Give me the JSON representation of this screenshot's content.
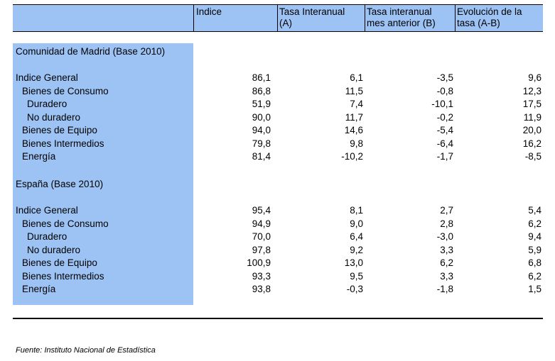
{
  "headers": {
    "indice": "Indice",
    "tasa_interanual": "Tasa Interanual\n(A)",
    "tasa_mes_anterior": "Tasa interanual\nmes anterior (B)",
    "evolucion": "Evolución de la\ntasa (A-B)"
  },
  "sections": [
    {
      "title": "Comunidad de Madrid (Base 2010)",
      "rows": [
        {
          "label": "Indice General",
          "indent": 0,
          "indice": "86,1",
          "tasa_a": "6,1",
          "tasa_b": "-3,5",
          "evol": "9,6"
        },
        {
          "label": "Bienes de Consumo",
          "indent": 1,
          "indice": "86,8",
          "tasa_a": "11,5",
          "tasa_b": "-0,8",
          "evol": "12,3"
        },
        {
          "label": "Duradero",
          "indent": 2,
          "indice": "51,9",
          "tasa_a": "7,4",
          "tasa_b": "-10,1",
          "evol": "17,5"
        },
        {
          "label": "No duradero",
          "indent": 2,
          "indice": "90,0",
          "tasa_a": "11,7",
          "tasa_b": "-0,2",
          "evol": "11,9"
        },
        {
          "label": "Bienes de Equipo",
          "indent": 1,
          "indice": "94,0",
          "tasa_a": "14,6",
          "tasa_b": "-5,4",
          "evol": "20,0"
        },
        {
          "label": "Bienes Intermedios",
          "indent": 1,
          "indice": "79,8",
          "tasa_a": "9,8",
          "tasa_b": "-6,4",
          "evol": "16,2"
        },
        {
          "label": "Energía",
          "indent": 1,
          "indice": "81,4",
          "tasa_a": "-10,2",
          "tasa_b": "-1,7",
          "evol": "-8,5"
        }
      ]
    },
    {
      "title": "España (Base 2010)",
      "rows": [
        {
          "label": "Indice General",
          "indent": 0,
          "indice": "95,4",
          "tasa_a": "8,1",
          "tasa_b": "2,7",
          "evol": "5,4"
        },
        {
          "label": "Bienes de Consumo",
          "indent": 1,
          "indice": "94,9",
          "tasa_a": "9,0",
          "tasa_b": "2,8",
          "evol": "6,2"
        },
        {
          "label": "Duradero",
          "indent": 2,
          "indice": "70,0",
          "tasa_a": "6,4",
          "tasa_b": "-3,0",
          "evol": "9,4"
        },
        {
          "label": "No duradero",
          "indent": 2,
          "indice": "97,8",
          "tasa_a": "9,2",
          "tasa_b": "3,3",
          "evol": "5,9"
        },
        {
          "label": "Bienes de Equipo",
          "indent": 1,
          "indice": "100,9",
          "tasa_a": "13,0",
          "tasa_b": "6,2",
          "evol": "6,8"
        },
        {
          "label": "Bienes Intermedios",
          "indent": 1,
          "indice": "93,3",
          "tasa_a": "9,5",
          "tasa_b": "3,3",
          "evol": "6,2"
        },
        {
          "label": "Energía",
          "indent": 1,
          "indice": "93,8",
          "tasa_a": "-0,3",
          "tasa_b": "-1,8",
          "evol": "1,5"
        }
      ]
    }
  ],
  "footer": "Fuente: Instituto Nacional de Estadística",
  "colors": {
    "header_fill": "#9dc3f5"
  }
}
